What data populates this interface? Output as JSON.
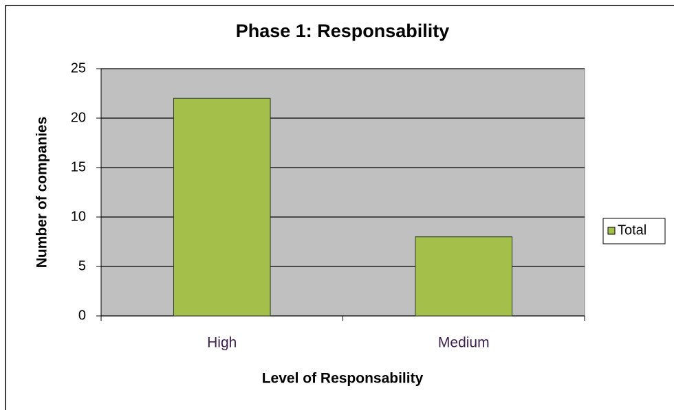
{
  "chart_data": {
    "type": "bar",
    "title": "Phase 1: Responsability",
    "x_label": "Level of Responsability",
    "y_label": "Number of companies",
    "categories": [
      "High",
      "Medium"
    ],
    "series": [
      {
        "name": "Total",
        "color": "#a4c04a",
        "values": [
          22,
          8
        ]
      }
    ],
    "ylim": [
      0,
      25
    ],
    "yticks": [
      0,
      5,
      10,
      15,
      20,
      25
    ],
    "grid": true,
    "legend": "right"
  }
}
